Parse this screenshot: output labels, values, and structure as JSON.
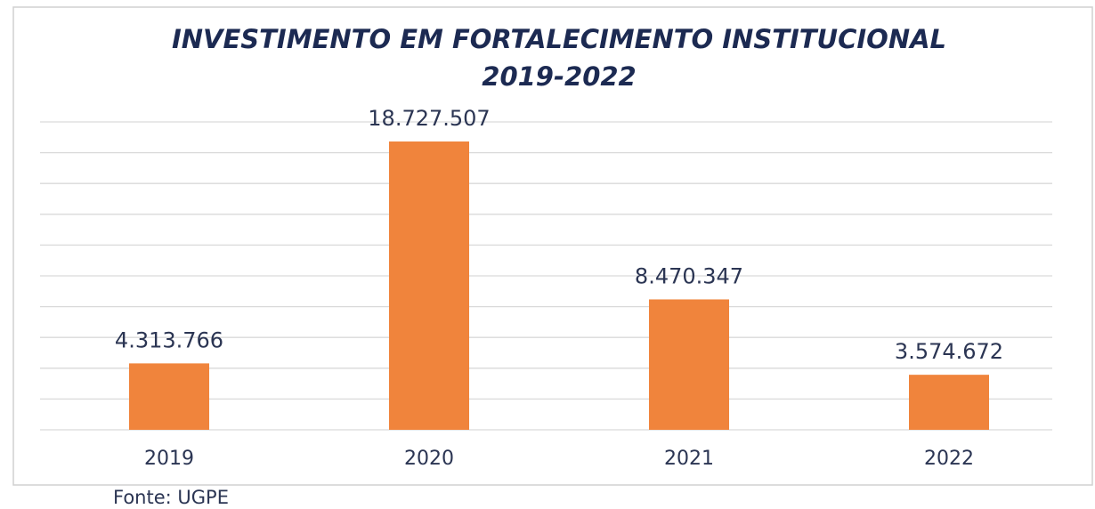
{
  "chart_data": {
    "type": "bar",
    "title": "INVESTIMENTO EM FORTALECIMENTO INSTITUCIONAL",
    "subtitle": "2019-2022",
    "categories": [
      "2019",
      "2020",
      "2021",
      "2022"
    ],
    "values": [
      4313766,
      18727507,
      8470347,
      3574672
    ],
    "value_labels": [
      "4.313.766",
      "18.727.507",
      "8.470.347",
      "3.574.672"
    ],
    "color": "#f0843c",
    "ylim": [
      0,
      20000000
    ],
    "yticks": [
      0,
      2000000,
      4000000,
      6000000,
      8000000,
      10000000,
      12000000,
      14000000,
      16000000,
      18000000,
      20000000
    ],
    "grid": true,
    "source": "Fonte: UGPE"
  }
}
